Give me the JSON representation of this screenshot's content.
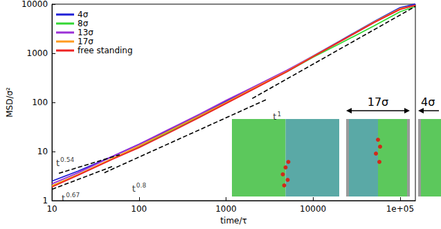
{
  "chart_data": {
    "type": "line",
    "log": true,
    "grid": false,
    "legend": "upper left",
    "xlabel": "time/τ",
    "ylabel": "MSD/σ²",
    "xlim": [
      10,
      150000
    ],
    "xticks": [
      10,
      100,
      1000,
      10000,
      {
        "value": 100000,
        "label": "1e+05"
      }
    ],
    "ylim": [
      1,
      10000
    ],
    "yticks": [
      1,
      10,
      100,
      1000,
      10000
    ],
    "x": [
      10,
      20,
      50,
      100,
      200,
      500,
      1000,
      2000,
      5000,
      10000,
      20000,
      50000,
      100000,
      150000
    ],
    "series": [
      {
        "name": "4σ",
        "color": "#1f1fd6",
        "values": [
          2.5,
          4,
          8,
          14,
          25,
          55,
          105,
          195,
          440,
          880,
          1750,
          4400,
          8500,
          10000
        ]
      },
      {
        "name": "8σ",
        "color": "#33d633",
        "values": [
          2.0,
          3.4,
          7.2,
          12.5,
          23,
          52,
          98,
          185,
          420,
          830,
          1550,
          3600,
          7000,
          9000
        ]
      },
      {
        "name": "13σ",
        "color": "#9b2fd6",
        "values": [
          2.2,
          3.7,
          8,
          14,
          26,
          58,
          110,
          200,
          450,
          870,
          1700,
          4200,
          8000,
          9600
        ]
      },
      {
        "name": "17σ",
        "color": "#ff9a1f",
        "values": [
          2.0,
          3.4,
          7.3,
          13,
          24,
          54,
          100,
          190,
          430,
          860,
          1700,
          4300,
          8100,
          9400
        ]
      },
      {
        "name": "free standing",
        "color": "#ee2222",
        "values": [
          1.9,
          3.3,
          7,
          12,
          22,
          50,
          95,
          180,
          420,
          850,
          1700,
          4200,
          7800,
          9500
        ]
      }
    ],
    "reference_lines": [
      {
        "label": "t",
        "exponent": "0.54",
        "x": [
          12,
          60
        ],
        "values": [
          3.6,
          8.6
        ],
        "color": "#000000",
        "line_style": "dashed"
      },
      {
        "label": "t",
        "exponent": "0.67",
        "x": [
          10,
          50
        ],
        "values": [
          1.7,
          5.0
        ],
        "color": "#000000",
        "line_style": "dashed"
      },
      {
        "label": "t",
        "exponent": "0.8",
        "x": [
          40,
          3000
        ],
        "values": [
          3.7,
          117
        ],
        "color": "#000000",
        "line_style": "dashed"
      },
      {
        "label": "t",
        "exponent": "1",
        "x": [
          2000,
          150000
        ],
        "values": [
          120,
          9000
        ],
        "color": "#000000",
        "line_style": "dashed"
      }
    ],
    "insets": [
      {
        "label": "17σ"
      },
      {
        "label": "4σ"
      }
    ]
  }
}
